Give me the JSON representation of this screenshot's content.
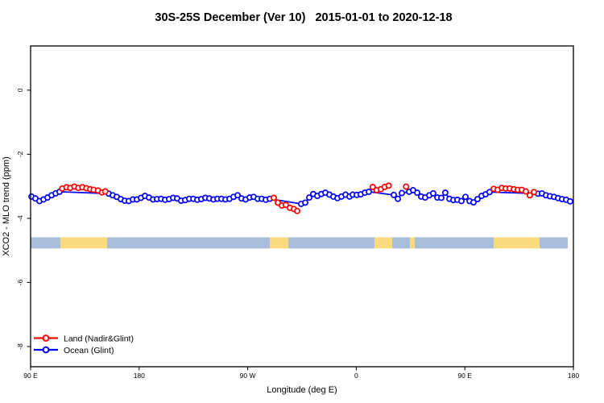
{
  "chart_data": {
    "type": "line",
    "title": "30S-25S December (Ver 10)   2015-01-01 to 2020-12-18",
    "xlabel": "Longitude (deg E)",
    "ylabel": "XCO2 - MLO trend (ppm)",
    "x_axis": {
      "range": [
        90,
        540
      ],
      "ticks": [
        90,
        180,
        270,
        360,
        450,
        540
      ],
      "labels": [
        "90 E",
        "180",
        "90 W",
        "0",
        "90 E",
        "180"
      ]
    },
    "y_axis": {
      "range": [
        -8.63,
        1.38
      ],
      "ticks": [
        0,
        -2,
        -4,
        -6,
        -8
      ],
      "labels": [
        "0",
        "-2",
        "-4",
        "-6",
        "-8"
      ]
    },
    "grid": false,
    "legend_position": "bottom-left",
    "legend": [
      {
        "label": "Land (Nadir&Glint)",
        "color": "#ff0000"
      },
      {
        "label": "Ocean (Glint)",
        "color": "#0000ff"
      }
    ],
    "series": [
      {
        "name": "Ocean (Glint)",
        "color": "#0000ff",
        "marker": "open-circle",
        "clusters": [
          [
            [
              90.7,
              -3.32
            ],
            [
              94.0,
              -3.38
            ],
            [
              97.3,
              -3.46
            ],
            [
              100.7,
              -3.41
            ],
            [
              104.0,
              -3.35
            ],
            [
              107.4,
              -3.28
            ],
            [
              110.7,
              -3.22
            ],
            [
              114.0,
              -3.17
            ],
            [
              154.8,
              -3.23
            ],
            [
              158.1,
              -3.28
            ],
            [
              161.4,
              -3.33
            ],
            [
              164.8,
              -3.4
            ],
            [
              168.1,
              -3.45
            ],
            [
              171.4,
              -3.46
            ],
            [
              174.8,
              -3.41
            ],
            [
              178.1,
              -3.41
            ],
            [
              181.5,
              -3.36
            ],
            [
              184.8,
              -3.3
            ],
            [
              188.1,
              -3.35
            ],
            [
              191.5,
              -3.41
            ],
            [
              194.8,
              -3.4
            ],
            [
              198.2,
              -3.39
            ],
            [
              201.5,
              -3.42
            ],
            [
              204.8,
              -3.4
            ],
            [
              208.2,
              -3.36
            ],
            [
              211.5,
              -3.38
            ],
            [
              214.8,
              -3.45
            ],
            [
              218.2,
              -3.43
            ],
            [
              221.5,
              -3.39
            ],
            [
              224.9,
              -3.39
            ],
            [
              228.2,
              -3.42
            ],
            [
              231.5,
              -3.4
            ],
            [
              234.9,
              -3.36
            ],
            [
              238.2,
              -3.38
            ],
            [
              241.6,
              -3.41
            ],
            [
              244.9,
              -3.39
            ],
            [
              248.2,
              -3.39
            ],
            [
              251.6,
              -3.41
            ],
            [
              254.9,
              -3.39
            ],
            [
              258.2,
              -3.33
            ],
            [
              261.6,
              -3.28
            ],
            [
              264.9,
              -3.38
            ],
            [
              268.3,
              -3.41
            ],
            [
              271.6,
              -3.35
            ],
            [
              274.9,
              -3.33
            ],
            [
              278.3,
              -3.39
            ],
            [
              281.6,
              -3.39
            ],
            [
              285.0,
              -3.42
            ],
            [
              288.3,
              -3.39
            ],
            [
              314.3,
              -3.55
            ],
            [
              317.7,
              -3.51
            ],
            [
              321.0,
              -3.35
            ],
            [
              324.3,
              -3.24
            ],
            [
              327.7,
              -3.3
            ],
            [
              331.0,
              -3.24
            ],
            [
              334.4,
              -3.2
            ],
            [
              337.7,
              -3.26
            ],
            [
              341.0,
              -3.32
            ],
            [
              344.4,
              -3.37
            ],
            [
              347.7,
              -3.32
            ],
            [
              351.1,
              -3.26
            ],
            [
              354.4,
              -3.32
            ],
            [
              357.1,
              -3.26
            ],
            [
              360.4,
              -3.27
            ],
            [
              363.7,
              -3.25
            ],
            [
              367.1,
              -3.2
            ],
            [
              370.4,
              -3.17
            ],
            [
              391.1,
              -3.27
            ],
            [
              394.5,
              -3.39
            ],
            [
              397.8,
              -3.21
            ],
            [
              403.8,
              -3.17
            ],
            [
              407.1,
              -3.12
            ],
            [
              410.5,
              -3.2
            ],
            [
              413.8,
              -3.32
            ],
            [
              417.1,
              -3.35
            ],
            [
              420.5,
              -3.28
            ],
            [
              423.8,
              -3.22
            ],
            [
              427.2,
              -3.35
            ],
            [
              430.5,
              -3.36
            ],
            [
              433.8,
              -3.2
            ],
            [
              437.2,
              -3.39
            ],
            [
              440.5,
              -3.43
            ],
            [
              443.8,
              -3.42
            ],
            [
              447.2,
              -3.46
            ],
            [
              450.5,
              -3.33
            ],
            [
              453.9,
              -3.46
            ],
            [
              457.2,
              -3.5
            ],
            [
              460.5,
              -3.4
            ],
            [
              463.9,
              -3.3
            ],
            [
              467.2,
              -3.25
            ],
            [
              470.5,
              -3.18
            ],
            [
              510.6,
              -3.23
            ],
            [
              513.9,
              -3.22
            ],
            [
              517.3,
              -3.28
            ],
            [
              520.6,
              -3.31
            ],
            [
              524.0,
              -3.33
            ],
            [
              527.3,
              -3.37
            ],
            [
              530.6,
              -3.4
            ],
            [
              534.0,
              -3.42
            ],
            [
              537.3,
              -3.47
            ]
          ]
        ]
      },
      {
        "name": "Land (Nadir&Glint)",
        "color": "#ff0000",
        "marker": "open-circle",
        "clusters": [
          [
            [
              116.2,
              -3.07
            ],
            [
              119.8,
              -3.03
            ],
            [
              122.9,
              -3.05
            ],
            [
              126.3,
              -3.01
            ],
            [
              129.6,
              -3.05
            ],
            [
              132.9,
              -3.03
            ],
            [
              136.3,
              -3.06
            ],
            [
              139.4,
              -3.09
            ],
            [
              142.3,
              -3.11
            ],
            [
              145.9,
              -3.13
            ],
            [
              149.2,
              -3.19
            ],
            [
              151.9,
              -3.16
            ]
          ],
          [
            [
              291.6,
              -3.36
            ],
            [
              295.0,
              -3.51
            ],
            [
              298.3,
              -3.6
            ],
            [
              301.6,
              -3.58
            ],
            [
              305.0,
              -3.67
            ],
            [
              308.3,
              -3.71
            ],
            [
              311.0,
              -3.77
            ]
          ],
          [
            [
              373.6,
              -3.02
            ],
            [
              376.9,
              -3.12
            ],
            [
              380.3,
              -3.09
            ],
            [
              383.6,
              -3.02
            ],
            [
              386.9,
              -2.98
            ]
          ],
          [
            [
              401.3,
              -3.01
            ]
          ],
          [
            [
              473.9,
              -3.08
            ],
            [
              477.2,
              -3.11
            ],
            [
              480.6,
              -3.05
            ],
            [
              483.9,
              -3.07
            ],
            [
              487.2,
              -3.07
            ],
            [
              490.6,
              -3.09
            ],
            [
              493.9,
              -3.11
            ],
            [
              497.2,
              -3.11
            ],
            [
              500.6,
              -3.16
            ],
            [
              503.9,
              -3.28
            ],
            [
              507.3,
              -3.18
            ]
          ]
        ]
      }
    ],
    "surface_band": {
      "description": "land/ocean surface-type strip",
      "y_top": -4.59,
      "y_bottom": -4.94,
      "ocean_color": "#a9bedb",
      "land_color": "#fbdb7e",
      "segments": [
        {
          "type": "ocean",
          "from": 90.0,
          "to": 114.7
        },
        {
          "type": "land",
          "from": 114.7,
          "to": 153.4
        },
        {
          "type": "ocean",
          "from": 153.4,
          "to": 288.3
        },
        {
          "type": "land",
          "from": 288.3,
          "to": 303.6
        },
        {
          "type": "ocean",
          "from": 303.6,
          "to": 375.1
        },
        {
          "type": "land",
          "from": 375.1,
          "to": 389.8
        },
        {
          "type": "ocean",
          "from": 389.8,
          "to": 404.5
        },
        {
          "type": "land",
          "from": 404.5,
          "to": 408.5
        },
        {
          "type": "ocean",
          "from": 408.5,
          "to": 473.9
        },
        {
          "type": "land",
          "from": 473.9,
          "to": 512.0
        },
        {
          "type": "ocean",
          "from": 512.0,
          "to": 535.3
        }
      ]
    }
  }
}
